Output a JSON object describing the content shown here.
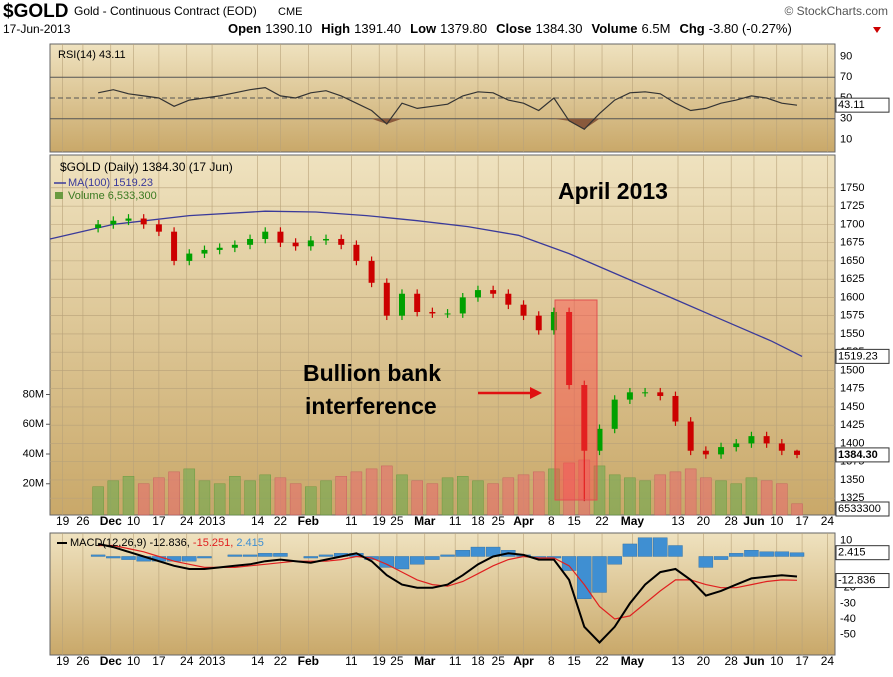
{
  "header": {
    "symbol": "$GOLD",
    "name": "Gold - Continuous Contract (EOD)",
    "exchange": "CME",
    "copyright": "© StockCharts.com",
    "date": "17-Jun-2013",
    "stats": [
      {
        "label": "Open",
        "value": "1390.10"
      },
      {
        "label": "High",
        "value": "1391.40"
      },
      {
        "label": "Low",
        "value": "1379.80"
      },
      {
        "label": "Close",
        "value": "1384.30"
      },
      {
        "label": "Volume",
        "value": "6.5M"
      },
      {
        "label": "Chg",
        "value": "-3.80 (-0.27%)"
      }
    ]
  },
  "annotations": {
    "title": "April 2013",
    "note_line1": "Bullion bank",
    "note_line2": "interference"
  },
  "chart_data": [
    {
      "type": "line",
      "name": "RSI(14)",
      "legend": "RSI(14) 43.11",
      "last_label": "43.11",
      "color": "#333333",
      "fill_color": "#8a5a3c",
      "x": [
        7,
        10,
        13,
        16,
        19,
        22,
        25,
        28,
        31,
        34,
        37,
        40,
        43,
        46,
        49,
        52,
        55,
        58,
        61,
        64,
        67,
        70,
        73,
        76,
        79,
        82,
        85,
        88,
        91,
        94,
        97,
        100,
        103,
        106,
        109,
        112,
        115,
        118,
        121,
        124,
        127,
        130,
        133,
        136,
        139,
        142,
        145
      ],
      "values": [
        55,
        58,
        54,
        52,
        50,
        42,
        48,
        50,
        52,
        55,
        58,
        60,
        52,
        50,
        55,
        57,
        52,
        45,
        38,
        25,
        45,
        40,
        42,
        44,
        52,
        56,
        55,
        48,
        45,
        38,
        50,
        28,
        20,
        35,
        48,
        55,
        56,
        54,
        45,
        38,
        40,
        45,
        48,
        52,
        50,
        45,
        43.11
      ],
      "ylim": [
        -2,
        102
      ],
      "yticks": [
        90,
        70,
        50,
        30,
        10
      ],
      "levels": [
        70,
        50,
        30
      ],
      "oversold": 30
    },
    {
      "type": "candlestick",
      "name": "$GOLD (Daily)",
      "legend": "$GOLD (Daily) 1384.30 (17 Jun)",
      "up_color": "#00a000",
      "down_color": "#cc0000",
      "x": [
        7,
        10,
        13,
        16,
        19,
        22,
        25,
        28,
        31,
        34,
        37,
        40,
        43,
        46,
        49,
        52,
        55,
        58,
        61,
        64,
        67,
        70,
        73,
        76,
        79,
        82,
        85,
        88,
        91,
        94,
        97,
        100,
        103,
        106,
        109,
        112,
        115,
        118,
        121,
        124,
        127,
        130,
        133,
        136,
        139,
        142,
        145
      ],
      "open": [
        1695,
        1700,
        1705,
        1708,
        1700,
        1690,
        1650,
        1660,
        1665,
        1668,
        1672,
        1680,
        1690,
        1675,
        1670,
        1678,
        1680,
        1672,
        1650,
        1620,
        1575,
        1605,
        1580,
        1578,
        1578,
        1600,
        1610,
        1605,
        1590,
        1575,
        1555,
        1580,
        1480,
        1390,
        1420,
        1460,
        1470,
        1470,
        1465,
        1430,
        1390,
        1385,
        1395,
        1400,
        1410,
        1400,
        1390.1
      ],
      "high": [
        1706,
        1711,
        1714,
        1714,
        1706,
        1696,
        1666,
        1671,
        1674,
        1678,
        1686,
        1696,
        1696,
        1681,
        1684,
        1686,
        1686,
        1678,
        1656,
        1626,
        1611,
        1611,
        1586,
        1584,
        1606,
        1616,
        1616,
        1611,
        1596,
        1581,
        1586,
        1586,
        1486,
        1426,
        1466,
        1476,
        1476,
        1476,
        1471,
        1436,
        1396,
        1401,
        1406,
        1416,
        1416,
        1406,
        1391.4
      ],
      "low": [
        1689,
        1694,
        1699,
        1694,
        1684,
        1644,
        1644,
        1654,
        1659,
        1662,
        1666,
        1674,
        1669,
        1664,
        1664,
        1672,
        1666,
        1644,
        1614,
        1569,
        1569,
        1574,
        1572,
        1572,
        1572,
        1594,
        1599,
        1584,
        1569,
        1549,
        1549,
        1474,
        1321,
        1384,
        1414,
        1454,
        1464,
        1459,
        1424,
        1384,
        1379,
        1379,
        1389,
        1394,
        1394,
        1384,
        1379.8
      ],
      "close": [
        1700,
        1705,
        1708,
        1700,
        1690,
        1650,
        1660,
        1665,
        1668,
        1672,
        1680,
        1690,
        1675,
        1670,
        1678,
        1680,
        1672,
        1650,
        1620,
        1575,
        1605,
        1580,
        1578,
        1578,
        1600,
        1610,
        1605,
        1590,
        1575,
        1555,
        1580,
        1480,
        1390,
        1420,
        1460,
        1470,
        1470,
        1465,
        1430,
        1390,
        1385,
        1395,
        1400,
        1410,
        1400,
        1390,
        1384.3
      ],
      "close_label": "1384.30",
      "ma": {
        "name": "MA(100)",
        "legend": "MA(100) 1519.23",
        "last_label": "1519.23",
        "color": "#3a3a9a",
        "x": [
          -2.5,
          10,
          25,
          40,
          50,
          60,
          70,
          80,
          90,
          100,
          110,
          120,
          130,
          140,
          146
        ],
        "values": [
          1680,
          1700,
          1712,
          1718,
          1717,
          1712,
          1705,
          1697,
          1685,
          1660,
          1630,
          1600,
          1570,
          1540,
          1519.23
        ]
      },
      "volume": {
        "legend": "Volume 6,533,300",
        "last_label": "6533300",
        "values": [
          18,
          22,
          25,
          20,
          24,
          28,
          30,
          22,
          20,
          25,
          22,
          26,
          24,
          20,
          18,
          22,
          25,
          28,
          30,
          32,
          26,
          22,
          20,
          24,
          25,
          22,
          20,
          24,
          26,
          28,
          30,
          34,
          36,
          32,
          26,
          24,
          22,
          26,
          28,
          30,
          24,
          22,
          20,
          24,
          22,
          20,
          6.5333
        ],
        "ylim": [
          -1,
          241
        ],
        "yticks": [
          {
            "value": 20,
            "label": "20M"
          },
          {
            "value": 40,
            "label": "40M"
          },
          {
            "value": 60,
            "label": "60M"
          },
          {
            "value": 80,
            "label": "80M"
          }
        ]
      },
      "xlim": [
        -2.5,
        152.5
      ],
      "xticks": [
        {
          "value": 0,
          "label": "19"
        },
        {
          "value": 4,
          "label": "26"
        },
        {
          "value": 9.5,
          "label": "Dec"
        },
        {
          "value": 14,
          "label": "10"
        },
        {
          "value": 19,
          "label": "17"
        },
        {
          "value": 24.5,
          "label": "24"
        },
        {
          "value": 29.5,
          "label": "2013"
        },
        {
          "value": 38.5,
          "label": "14"
        },
        {
          "value": 43,
          "label": "22"
        },
        {
          "value": 48.5,
          "label": "Feb"
        },
        {
          "value": 57,
          "label": "11"
        },
        {
          "value": 62.5,
          "label": "19"
        },
        {
          "value": 66,
          "label": "25"
        },
        {
          "value": 71.5,
          "label": "Mar"
        },
        {
          "value": 77.5,
          "label": "11"
        },
        {
          "value": 82,
          "label": "18"
        },
        {
          "value": 86,
          "label": "25"
        },
        {
          "value": 91,
          "label": "Apr"
        },
        {
          "value": 96.5,
          "label": "8"
        },
        {
          "value": 101,
          "label": "15"
        },
        {
          "value": 106.5,
          "label": "22"
        },
        {
          "value": 112.5,
          "label": "May"
        },
        {
          "value": 121.5,
          "label": "13"
        },
        {
          "value": 126.5,
          "label": "20"
        },
        {
          "value": 132,
          "label": "28"
        },
        {
          "value": 136.5,
          "label": "Jun"
        },
        {
          "value": 141,
          "label": "10"
        },
        {
          "value": 146,
          "label": "17"
        },
        {
          "value": 151,
          "label": "24"
        }
      ],
      "ylim": [
        1302,
        1795
      ],
      "yticks": [
        1325,
        1350,
        1375,
        1400,
        1425,
        1450,
        1475,
        1500,
        1525,
        1550,
        1575,
        1600,
        1625,
        1650,
        1675,
        1700,
        1725,
        1750
      ],
      "grid": true
    },
    {
      "type": "macd",
      "name": "MACD(12,26,9)",
      "legend_values": [
        "-12.836,",
        "-15.251,",
        "2.415"
      ],
      "last_labels": [
        "-12.836",
        "2.415"
      ],
      "x": [
        7,
        10,
        13,
        16,
        19,
        22,
        25,
        28,
        31,
        34,
        37,
        40,
        43,
        46,
        49,
        52,
        55,
        58,
        61,
        64,
        67,
        70,
        73,
        76,
        79,
        82,
        85,
        88,
        91,
        94,
        97,
        100,
        103,
        106,
        109,
        112,
        115,
        118,
        121,
        124,
        127,
        130,
        133,
        136,
        139,
        142,
        145
      ],
      "series": [
        {
          "name": "MACD",
          "color": "#000000",
          "values": [
            8,
            6,
            3,
            0,
            -3,
            -6,
            -8,
            -8,
            -7,
            -6,
            -5,
            -3,
            -2,
            -3,
            -4,
            -2,
            0,
            2,
            -3,
            -12,
            -18,
            -20,
            -20,
            -18,
            -12,
            -5,
            0,
            2,
            1,
            -2,
            -2,
            -15,
            -45,
            -55,
            -45,
            -30,
            -18,
            -10,
            -8,
            -15,
            -25,
            -22,
            -18,
            -14,
            -13,
            -12,
            -12.836
          ]
        },
        {
          "name": "Signal",
          "color": "#e02020",
          "values": [
            7,
            7,
            5,
            3,
            0,
            -3,
            -5,
            -7,
            -7,
            -7,
            -6,
            -5,
            -4,
            -3,
            -3,
            -3,
            -2,
            0,
            -1,
            -5,
            -10,
            -15,
            -18,
            -19,
            -16,
            -11,
            -6,
            -2,
            0,
            -1,
            -1,
            -6,
            -18,
            -32,
            -40,
            -38,
            -30,
            -22,
            -15,
            -15,
            -18,
            -20,
            -20,
            -18,
            -16,
            -15,
            -15.251
          ]
        },
        {
          "name": "Histogram",
          "color": "#3f8fd2",
          "values": [
            1,
            -1,
            -2,
            -3,
            -3,
            -3,
            -3,
            -1,
            0,
            1,
            1,
            2,
            2,
            0,
            -1,
            1,
            2,
            2,
            -2,
            -7,
            -8,
            -5,
            -2,
            1,
            4,
            6,
            6,
            4,
            1,
            -1,
            -1,
            -9,
            -27,
            -23,
            -5,
            8,
            12,
            12,
            7,
            0,
            -7,
            -2,
            2,
            4,
            3,
            3,
            2.415
          ]
        }
      ],
      "ylim": [
        -63,
        15
      ],
      "yticks": [
        10,
        0,
        -20,
        -30,
        -40,
        -50
      ]
    }
  ]
}
